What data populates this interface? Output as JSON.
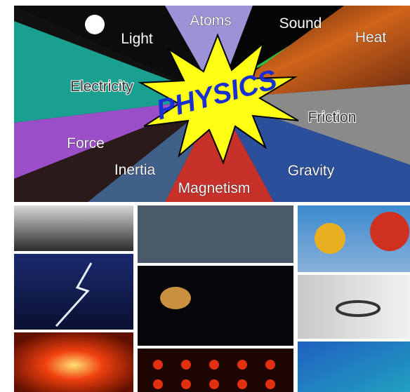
{
  "banner": {
    "center": "PHYSICS",
    "topics": [
      "Light",
      "Atoms",
      "Sound",
      "Heat",
      "Electricity",
      "Friction",
      "Force",
      "Inertia",
      "Gravity",
      "Magnetism"
    ]
  }
}
